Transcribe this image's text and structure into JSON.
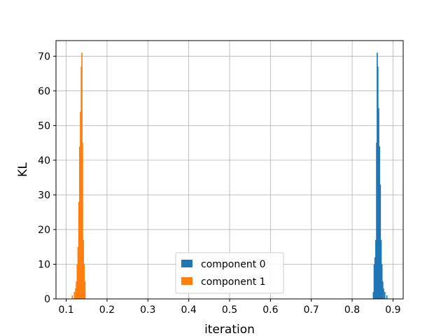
{
  "chart_data": {
    "type": "bar",
    "title": "",
    "xlabel": "iteration",
    "ylabel": "KL",
    "xlim": [
      0.075,
      0.925
    ],
    "ylim": [
      0,
      74.5
    ],
    "xticks": [
      "0.1",
      "0.2",
      "0.3",
      "0.4",
      "0.5",
      "0.6",
      "0.7",
      "0.8",
      "0.9"
    ],
    "yticks": [
      "0",
      "10",
      "20",
      "30",
      "40",
      "50",
      "60",
      "70"
    ],
    "grid": true,
    "legend_position": "lower-center",
    "series": [
      {
        "name": "component 0",
        "color": "#1f77b4",
        "bars": [
          {
            "x": 0.852,
            "y": 2
          },
          {
            "x": 0.854,
            "y": 10
          },
          {
            "x": 0.856,
            "y": 12
          },
          {
            "x": 0.858,
            "y": 17
          },
          {
            "x": 0.86,
            "y": 45
          },
          {
            "x": 0.8615,
            "y": 71
          },
          {
            "x": 0.863,
            "y": 67
          },
          {
            "x": 0.865,
            "y": 55
          },
          {
            "x": 0.867,
            "y": 44
          },
          {
            "x": 0.869,
            "y": 33
          },
          {
            "x": 0.871,
            "y": 17
          },
          {
            "x": 0.873,
            "y": 10
          },
          {
            "x": 0.875,
            "y": 5
          },
          {
            "x": 0.877,
            "y": 3
          },
          {
            "x": 0.88,
            "y": 2
          },
          {
            "x": 0.885,
            "y": 1
          }
        ]
      },
      {
        "name": "component 1",
        "color": "#ff7f0e",
        "bars": [
          {
            "x": 0.115,
            "y": 1
          },
          {
            "x": 0.12,
            "y": 2
          },
          {
            "x": 0.123,
            "y": 3
          },
          {
            "x": 0.125,
            "y": 5
          },
          {
            "x": 0.127,
            "y": 10
          },
          {
            "x": 0.129,
            "y": 15
          },
          {
            "x": 0.131,
            "y": 28
          },
          {
            "x": 0.133,
            "y": 44
          },
          {
            "x": 0.135,
            "y": 54
          },
          {
            "x": 0.137,
            "y": 67
          },
          {
            "x": 0.1385,
            "y": 71
          },
          {
            "x": 0.14,
            "y": 45
          },
          {
            "x": 0.142,
            "y": 17
          },
          {
            "x": 0.144,
            "y": 10
          },
          {
            "x": 0.146,
            "y": 5
          }
        ]
      }
    ]
  }
}
